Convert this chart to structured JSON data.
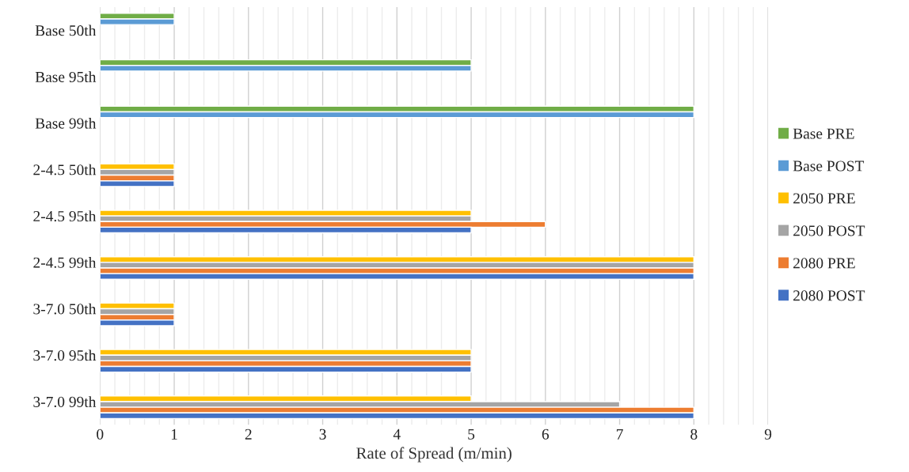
{
  "chart_data": {
    "type": "bar",
    "orientation": "horizontal",
    "xlabel": "Rate of Spread (m/min)",
    "categories": [
      "Base 50th",
      "Base 95th",
      "Base 99th",
      "2-4.5 50th",
      "2-4.5 95th",
      "2-4.5 99th",
      "3-7.0 50th",
      "3-7.0 95th",
      "3-7.0 99th"
    ],
    "series": [
      {
        "name": "Base PRE",
        "color": "#70ad47",
        "values": [
          1,
          5,
          8,
          null,
          null,
          null,
          null,
          null,
          null
        ]
      },
      {
        "name": "Base POST",
        "color": "#5b9bd5",
        "values": [
          1,
          5,
          8,
          null,
          null,
          null,
          null,
          null,
          null
        ]
      },
      {
        "name": "2050 PRE",
        "color": "#ffc000",
        "values": [
          null,
          null,
          null,
          1,
          5,
          8,
          1,
          5,
          5
        ]
      },
      {
        "name": "2050 POST",
        "color": "#a5a5a5",
        "values": [
          null,
          null,
          null,
          1,
          5,
          8,
          1,
          5,
          7
        ]
      },
      {
        "name": "2080 PRE",
        "color": "#ed7d31",
        "values": [
          null,
          null,
          null,
          1,
          6,
          8,
          1,
          5,
          8
        ]
      },
      {
        "name": "2080 POST",
        "color": "#4472c4",
        "values": [
          null,
          null,
          null,
          1,
          5,
          8,
          1,
          5,
          8
        ]
      }
    ],
    "xlim": [
      0,
      9
    ],
    "xticks": [
      0,
      {
        "value": 0.2,
        "label": null
      },
      {
        "value": 0.4,
        "label": null
      },
      {
        "value": 0.6,
        "label": null
      },
      {
        "value": 0.8,
        "label": null
      },
      1,
      {
        "value": 1.2,
        "label": null
      },
      {
        "value": 1.4,
        "label": null
      },
      {
        "value": 1.6,
        "label": null
      },
      {
        "value": 1.8,
        "label": null
      },
      2,
      {
        "value": 2.2,
        "label": null
      },
      {
        "value": 2.4,
        "label": null
      },
      {
        "value": 2.6,
        "label": null
      },
      {
        "value": 2.8,
        "label": null
      },
      3,
      {
        "value": 3.2,
        "label": null
      },
      {
        "value": 3.4,
        "label": null
      },
      {
        "value": 3.6,
        "label": null
      },
      {
        "value": 3.8,
        "label": null
      },
      4,
      {
        "value": 4.2,
        "label": null
      },
      {
        "value": 4.4,
        "label": null
      },
      {
        "value": 4.6,
        "label": null
      },
      {
        "value": 4.8,
        "label": null
      },
      5,
      {
        "value": 5.2,
        "label": null
      },
      {
        "value": 5.4,
        "label": null
      },
      {
        "value": 5.6,
        "label": null
      },
      {
        "value": 5.8,
        "label": null
      },
      6,
      {
        "value": 6.2,
        "label": null
      },
      {
        "value": 6.4,
        "label": null
      },
      {
        "value": 6.6,
        "label": null
      },
      {
        "value": 6.8,
        "label": null
      },
      7,
      {
        "value": 7.2,
        "label": null
      },
      {
        "value": 7.4,
        "label": null
      },
      {
        "value": 7.6,
        "label": null
      },
      {
        "value": 7.8,
        "label": null
      },
      8,
      {
        "value": 8.2,
        "label": null
      },
      {
        "value": 8.4,
        "label": null
      },
      {
        "value": 8.6,
        "label": null
      },
      {
        "value": 8.8,
        "label": null
      },
      9
    ],
    "grid": "x",
    "legend": "right"
  }
}
